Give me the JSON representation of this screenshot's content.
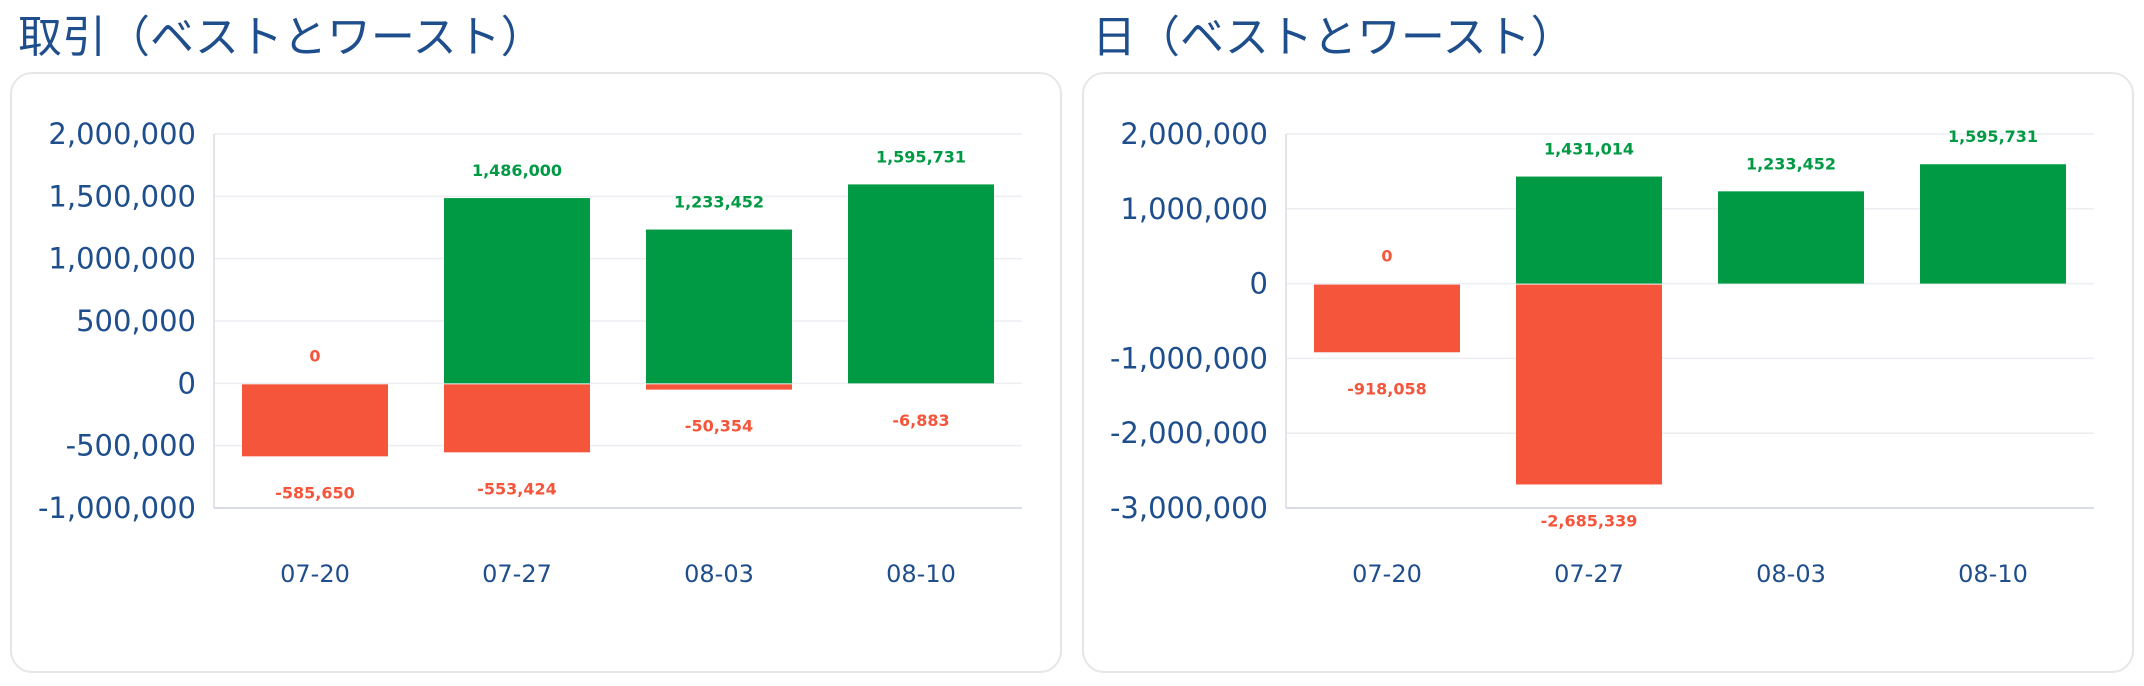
{
  "panels": [
    {
      "title": "取引（ベストとワースト）"
    },
    {
      "title": "日（ベストとワースト）"
    }
  ],
  "colors": {
    "positive": "#009a44",
    "negative": "#f5553b",
    "axis_text": "#1f4e8c"
  },
  "chart_data": [
    {
      "type": "bar",
      "title": "取引（ベストとワースト）",
      "categories": [
        "07-20",
        "07-27",
        "08-03",
        "08-10"
      ],
      "series": [
        {
          "values": [
            0,
            1486000,
            1233452,
            1595731
          ]
        },
        {
          "values": [
            -585650,
            -553424,
            -50354,
            -6883
          ]
        }
      ],
      "label_texts": {
        "positive": [
          "0",
          "1,486,000",
          "1,233,452",
          "1,595,731"
        ],
        "negative": [
          "-585,650",
          "-553,424",
          "-50,354",
          "-6,883"
        ]
      },
      "ylim": [
        -1000000,
        2000000
      ],
      "yticks": [
        2000000,
        1500000,
        1000000,
        500000,
        0,
        -500000,
        -1000000
      ],
      "ytick_labels": [
        "2,000,000",
        "1,500,000",
        "1,000,000",
        "500,000",
        "0",
        "-500,000",
        "-1,000,000"
      ],
      "grid": true,
      "legend": "none"
    },
    {
      "type": "bar",
      "title": "日（ベストとワースト）",
      "categories": [
        "07-20",
        "07-27",
        "08-03",
        "08-10"
      ],
      "series": [
        {
          "values": [
            0,
            1431014,
            1233452,
            1595731
          ]
        },
        {
          "values": [
            -918058,
            -2685339,
            0,
            0
          ]
        }
      ],
      "label_texts": {
        "positive": [
          "0",
          "1,431,014",
          "1,233,452",
          "1,595,731"
        ],
        "negative": [
          "-918,058",
          "-2,685,339",
          "",
          ""
        ]
      },
      "ylim": [
        -3000000,
        2000000
      ],
      "yticks": [
        2000000,
        1000000,
        0,
        -1000000,
        -2000000,
        -3000000
      ],
      "ytick_labels": [
        "2,000,000",
        "1,000,000",
        "0",
        "-1,000,000",
        "-2,000,000",
        "-3,000,000"
      ],
      "grid": true,
      "legend": "none"
    }
  ]
}
